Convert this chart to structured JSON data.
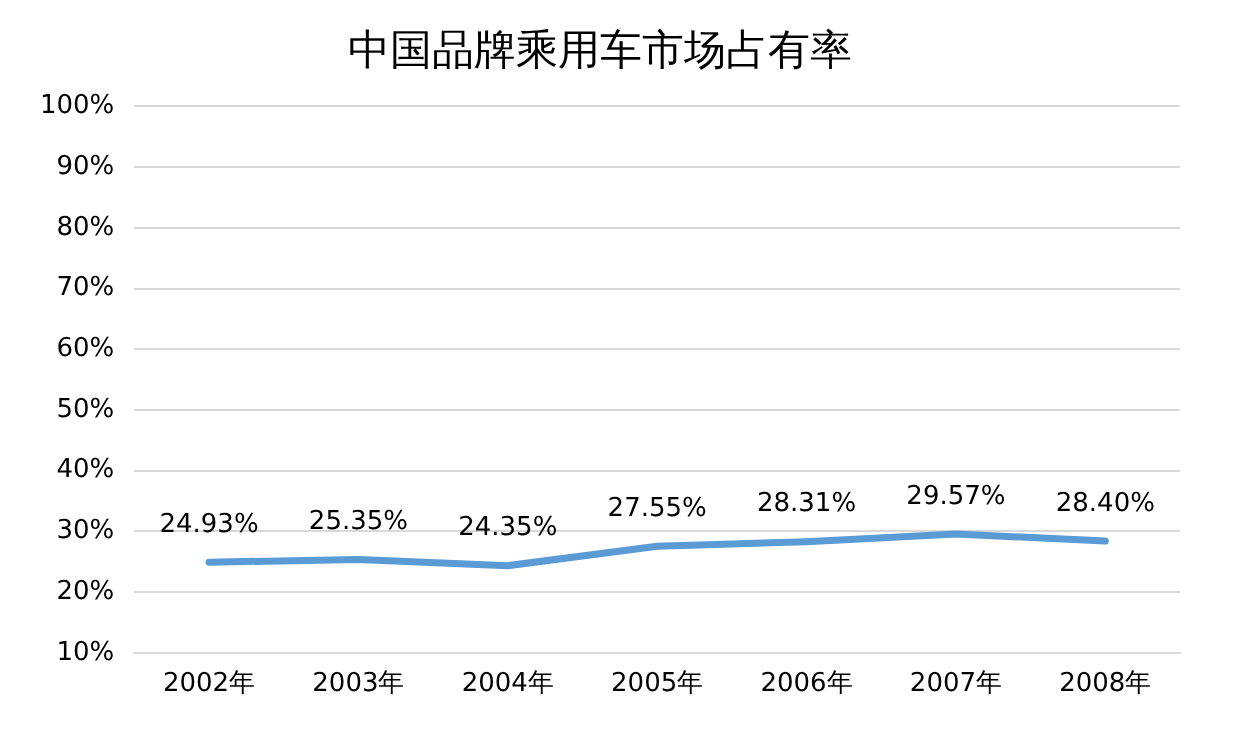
{
  "chart_data": {
    "type": "line",
    "title": "中国品牌乘用车市场占有率",
    "categories": [
      "2002年",
      "2003年",
      "2004年",
      "2005年",
      "2006年",
      "2007年",
      "2008年"
    ],
    "series": [
      {
        "color": "#5b9bd5",
        "values": [
          24.93,
          25.35,
          24.35,
          27.55,
          28.31,
          29.57,
          28.4
        ],
        "value_labels": [
          "24.93%",
          "25.35%",
          "24.35%",
          "27.55%",
          "28.31%",
          "29.57%",
          "28.40%"
        ]
      }
    ],
    "ylim": [
      10,
      100
    ],
    "yticks": [
      {
        "value": 10,
        "label": "10%"
      },
      {
        "value": 20,
        "label": "20%"
      },
      {
        "value": 30,
        "label": "30%"
      },
      {
        "value": 40,
        "label": "40%"
      },
      {
        "value": 50,
        "label": "50%"
      },
      {
        "value": 60,
        "label": "60%"
      },
      {
        "value": 70,
        "label": "70%"
      },
      {
        "value": 80,
        "label": "80%"
      },
      {
        "value": 90,
        "label": "90%"
      },
      {
        "value": 100,
        "label": "100%"
      }
    ],
    "grid": "y",
    "legend": false,
    "marker": "none",
    "line_style": "solid"
  }
}
